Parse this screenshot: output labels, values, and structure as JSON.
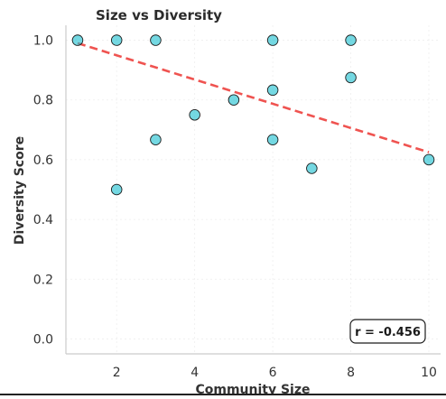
{
  "chart_data": {
    "type": "scatter",
    "title": "Size vs Diversity",
    "xlabel": "Community Size",
    "ylabel": "Diversity Score",
    "xlim": [
      0.7,
      10.3
    ],
    "ylim": [
      -0.05,
      1.05
    ],
    "x_ticks": [
      2,
      4,
      6,
      8,
      10
    ],
    "y_ticks": [
      0.0,
      0.2,
      0.4,
      0.6,
      0.8,
      1.0
    ],
    "x_tick_labels": [
      "2",
      "4",
      "6",
      "8",
      "10"
    ],
    "y_tick_labels": [
      "0.0",
      "0.2",
      "0.4",
      "0.6",
      "0.8",
      "1.0"
    ],
    "grid": true,
    "points": [
      {
        "x": 1,
        "y": 1.0
      },
      {
        "x": 2,
        "y": 1.0
      },
      {
        "x": 3,
        "y": 1.0
      },
      {
        "x": 2,
        "y": 0.5
      },
      {
        "x": 3,
        "y": 0.667
      },
      {
        "x": 4,
        "y": 0.75
      },
      {
        "x": 5,
        "y": 0.8
      },
      {
        "x": 6,
        "y": 0.833
      },
      {
        "x": 6,
        "y": 1.0
      },
      {
        "x": 6,
        "y": 0.667
      },
      {
        "x": 7,
        "y": 0.571
      },
      {
        "x": 8,
        "y": 1.0
      },
      {
        "x": 8,
        "y": 0.875
      },
      {
        "x": 10,
        "y": 0.6
      }
    ],
    "trend_line": {
      "x": [
        1,
        10
      ],
      "y": [
        0.99,
        0.625
      ]
    },
    "annotation": "r = -0.456",
    "annotation_placement": "bottom-right",
    "colors": {
      "points": "#17becf",
      "point_edge": "#1a1a1a",
      "trend": "#ef5350",
      "grid": "#eeeeee",
      "axis": "#cccccc",
      "text": "#333333"
    }
  }
}
